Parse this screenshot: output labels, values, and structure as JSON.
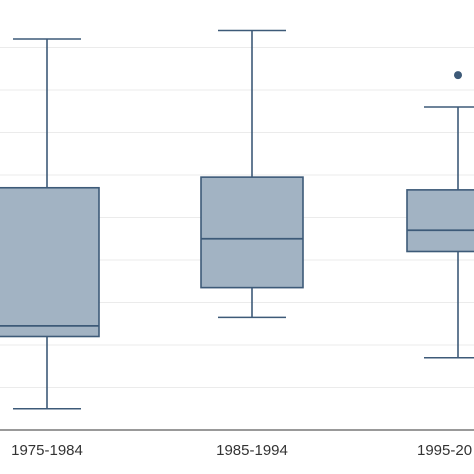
{
  "chart_data": {
    "type": "box",
    "title": "",
    "xlabel": "",
    "ylabel": "",
    "categories": [
      "1975-1984",
      "1985-1994",
      "1995-20"
    ],
    "boxes": [
      {
        "category": "1975-1984",
        "whisker_low": 1.0,
        "q1": 4.4,
        "median": 4.9,
        "q3": 11.4,
        "whisker_high": 18.4,
        "outliers": []
      },
      {
        "category": "1985-1994",
        "whisker_low": 5.3,
        "q1": 6.7,
        "median": 9.0,
        "q3": 11.9,
        "whisker_high": 18.8,
        "outliers": []
      },
      {
        "category": "1995-20",
        "whisker_low": 3.4,
        "q1": 8.4,
        "median": 9.4,
        "q3": 11.3,
        "whisker_high": 15.2,
        "outliers": [
          16.7
        ]
      }
    ],
    "ylim": [
      0,
      20
    ],
    "grid": true,
    "colors": {
      "box_fill": "#a2b3c3",
      "box_stroke": "#3d5a78",
      "whisker": "#3d5a78",
      "grid": "#ebebeb",
      "axis": "#333333"
    }
  }
}
